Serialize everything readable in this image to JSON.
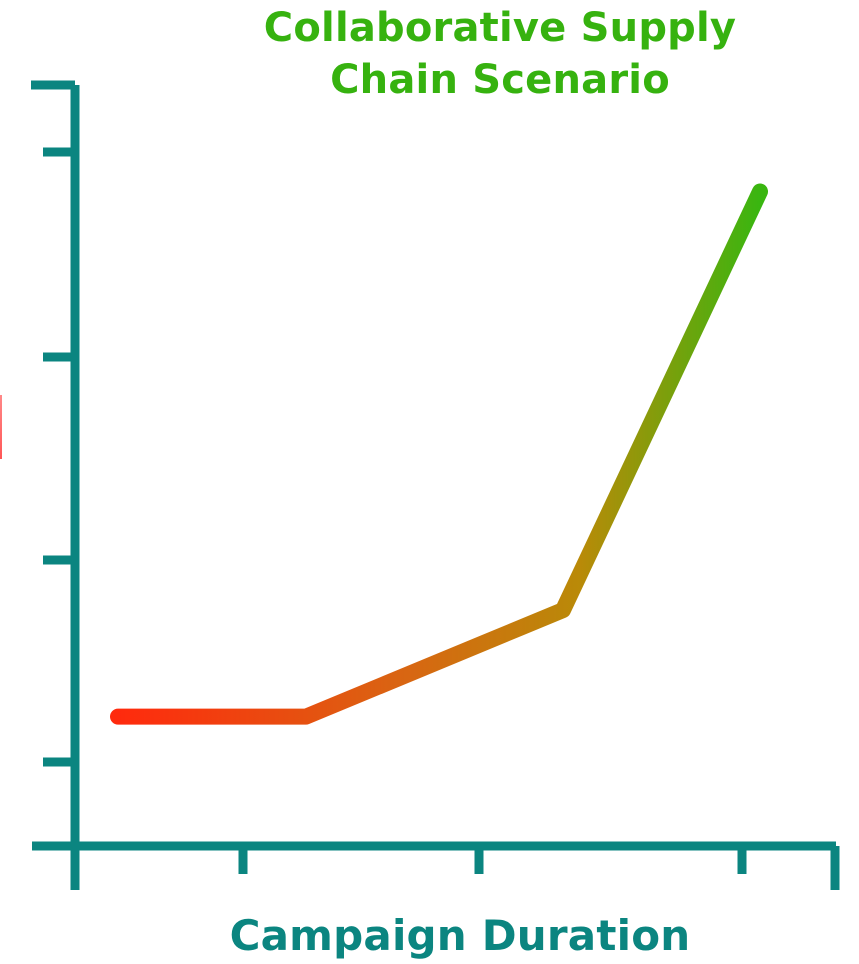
{
  "chart_data": {
    "type": "line",
    "title": "Collaborative Supply Chain Scenario",
    "xlabel": "Campaign Duration",
    "ylabel": "",
    "x": [
      0,
      1,
      2,
      3
    ],
    "ylim": [
      0,
      100
    ],
    "series": [
      {
        "values": [
          17,
          17,
          31,
          86
        ]
      }
    ],
    "colors": {
      "axis": "#0b8580",
      "title": "#36b20f",
      "line_start": "#ff2a0d",
      "line_mid": "#b98a08",
      "line_end": "#39b610"
    },
    "grid": false
  }
}
